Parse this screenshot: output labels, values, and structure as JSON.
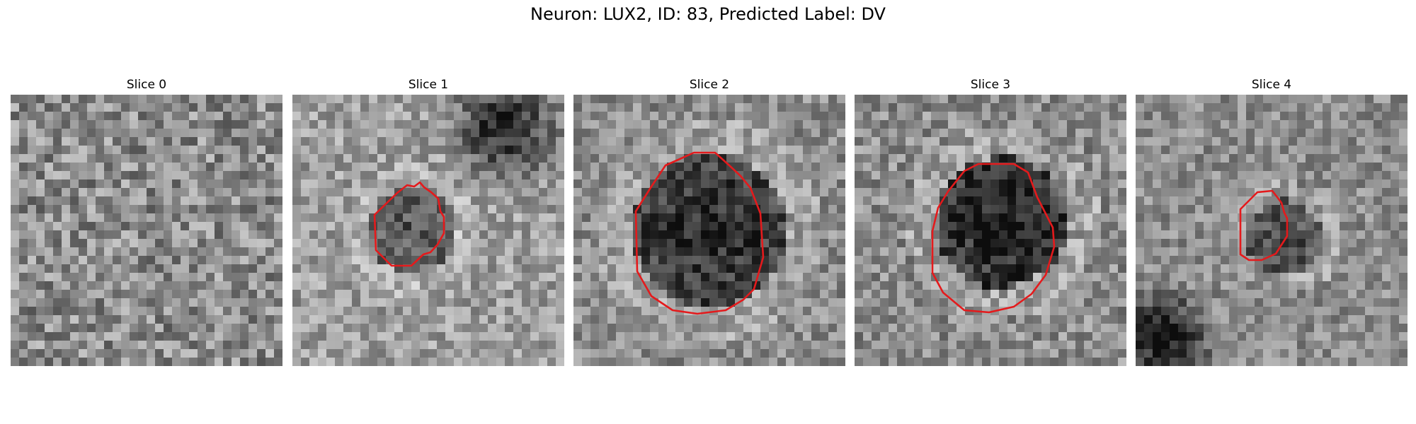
{
  "figure": {
    "title": "Neuron: LUX2, ID: 83, Predicted Label: DV"
  },
  "colors": {
    "contour": "#e41a1c",
    "background": "#ffffff"
  },
  "panels": [
    {
      "title": "Slice 0",
      "has_contour": false
    },
    {
      "title": "Slice 1",
      "has_contour": true
    },
    {
      "title": "Slice 2",
      "has_contour": true
    },
    {
      "title": "Slice 3",
      "has_contour": true
    },
    {
      "title": "Slice 4",
      "has_contour": true
    }
  ]
}
